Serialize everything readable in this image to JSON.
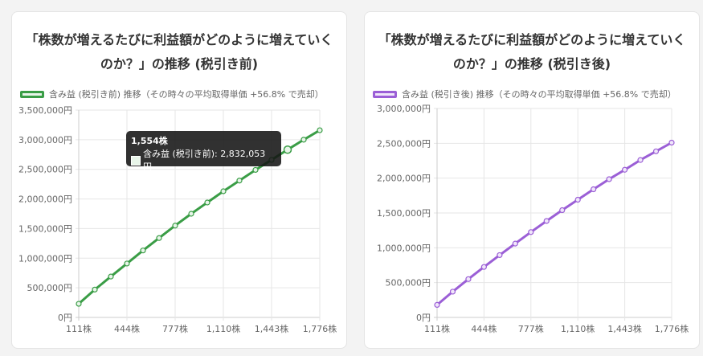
{
  "chart_data": [
    {
      "type": "line",
      "title": "「株数が増えるたびに利益額がどのように増えていくのか？」の推移 (税引き前)",
      "x": [
        111,
        222,
        333,
        444,
        555,
        666,
        777,
        888,
        999,
        1110,
        1221,
        1332,
        1443,
        1554,
        1665,
        1776
      ],
      "x_ticks": [
        "111株",
        "444株",
        "777株",
        "1,110株",
        "1,443株",
        "1,776株"
      ],
      "y_ticks": [
        "0円",
        "500,000円",
        "1,000,000円",
        "1,500,000円",
        "2,000,000円",
        "2,500,000円",
        "3,000,000円",
        "3,500,000円"
      ],
      "ylim": [
        0,
        3500000
      ],
      "series": [
        {
          "name": "含み益 (税引き前) 推移（その時々の平均取得単価 +56.8% で売却）",
          "color": "#3a9d46",
          "fill": "#e8f5e9",
          "values": [
            230000,
            470000,
            690000,
            910000,
            1130000,
            1340000,
            1550000,
            1750000,
            1940000,
            2130000,
            2310000,
            2490000,
            2660000,
            2832053,
            3000000,
            3160000
          ]
        }
      ],
      "grid": true,
      "legend": "top-left",
      "tooltip": {
        "title": "1,554株",
        "label": "含み益 (税引き前): 2,832,053 円"
      }
    },
    {
      "type": "line",
      "title": "「株数が増えるたびに利益額がどのように増えていくのか？」の推移 (税引き後)",
      "x": [
        111,
        222,
        333,
        444,
        555,
        666,
        777,
        888,
        999,
        1110,
        1221,
        1332,
        1443,
        1554,
        1665,
        1776
      ],
      "x_ticks": [
        "111株",
        "444株",
        "777株",
        "1,110株",
        "1,443株",
        "1,776株"
      ],
      "y_ticks": [
        "0円",
        "500,000円",
        "1,000,000円",
        "1,500,000円",
        "2,000,000円",
        "2,500,000円",
        "3,000,000円"
      ],
      "ylim": [
        0,
        3000000
      ],
      "series": [
        {
          "name": "含み益 (税引き後) 推移（その時々の平均取得単価 +56.8% で売却）",
          "color": "#9b5fd6",
          "fill": "#f0e6fa",
          "values": [
            180000,
            370000,
            550000,
            725000,
            895000,
            1060000,
            1225000,
            1385000,
            1540000,
            1690000,
            1840000,
            1985000,
            2120000,
            2260000,
            2385000,
            2510000
          ]
        }
      ],
      "grid": true,
      "legend": "top-left"
    }
  ]
}
